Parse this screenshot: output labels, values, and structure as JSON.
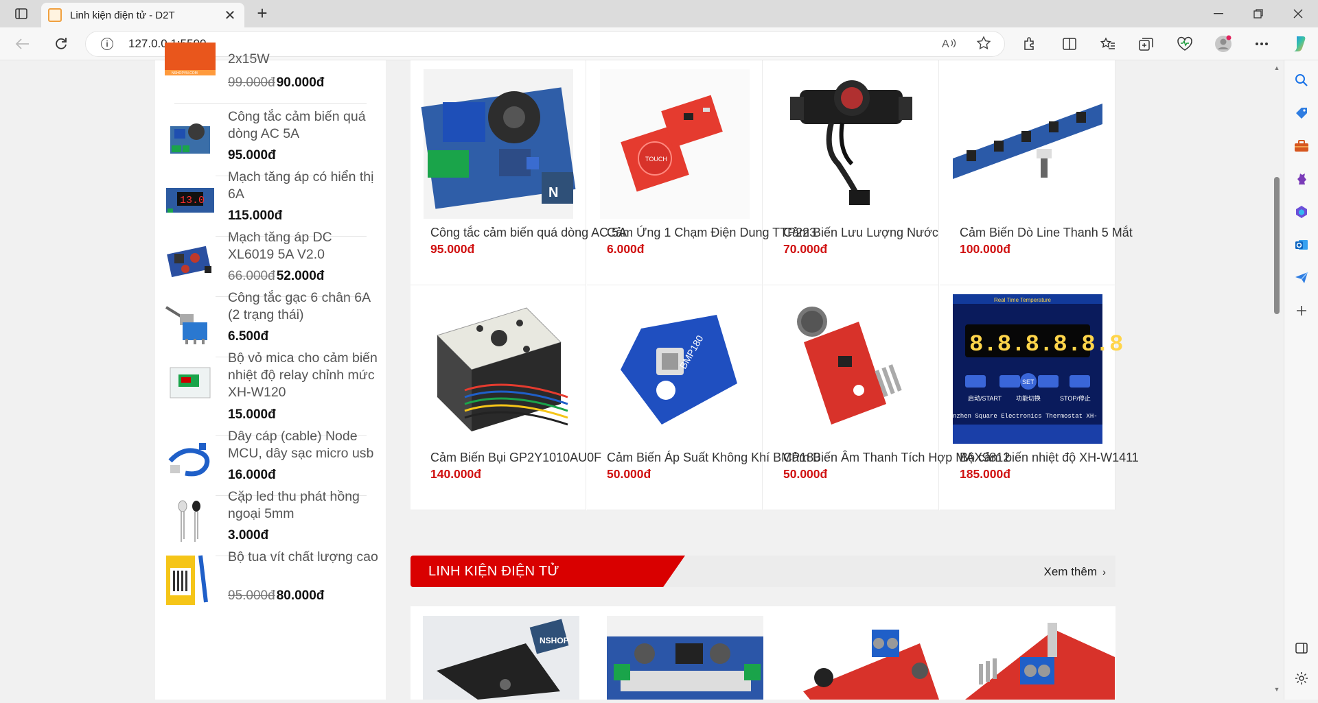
{
  "browser": {
    "tab_title": "Linh kiện điện tử - D2T",
    "url": "127.0.0.1:5500",
    "new_tab": "+",
    "close": "✕"
  },
  "sidebar": {
    "items": [
      {
        "name": "2x15W",
        "old_price": "99.000đ",
        "price": "90.000đ"
      },
      {
        "name": "Công tắc cảm biến quá dòng AC 5A",
        "price": "95.000đ"
      },
      {
        "name": "Mạch tăng áp có hiển thị 6A",
        "price": "115.000đ"
      },
      {
        "name": "Mạch tăng áp DC XL6019 5A V2.0",
        "old_price": "66.000đ",
        "price": "52.000đ"
      },
      {
        "name": "Công tắc gạc 6 chân 6A (2 trạng thái)",
        "price": "6.500đ"
      },
      {
        "name": "Bộ vỏ mica cho cảm biến nhiệt độ relay chỉnh mức XH-W120",
        "price": "15.000đ"
      },
      {
        "name": "Dây cáp (cable) Node MCU, dây sạc micro usb",
        "price": "16.000đ"
      },
      {
        "name": "Cặp led thu phát hồng ngoại 5mm",
        "price": "3.000đ"
      },
      {
        "name": "Bộ tua vít chất lượng cao",
        "old_price": "95.000đ",
        "price": "80.000đ"
      }
    ]
  },
  "products": [
    {
      "name": "Công tắc cảm biến quá dòng AC 5A",
      "price": "95.000đ"
    },
    {
      "name": "Cảm Ứng 1 Chạm Điện Dung TTP223",
      "price": "6.000đ"
    },
    {
      "name": "Cảm Biến Lưu Lượng Nước",
      "price": "70.000đ"
    },
    {
      "name": "Cảm Biến Dò Line Thanh 5 Mắt",
      "price": "100.000đ"
    },
    {
      "name": "Cảm Biến Bụi GP2Y1010AU0F",
      "price": "140.000đ"
    },
    {
      "name": "Cảm Biến Áp Suất Không Khí BMP180",
      "price": "50.000đ"
    },
    {
      "name": "Cảm Biến Âm Thanh Tích Hợp MAX9812",
      "price": "50.000đ"
    },
    {
      "name": "Bộ cảm biến nhiệt độ XH-W1411",
      "price": "185.000đ"
    }
  ],
  "section": {
    "title": "LINH KIỆN ĐIỆN TỬ",
    "more": "Xem thêm",
    "more_chevron": "›"
  },
  "thermostat": {
    "banner": "Real Time Temperature",
    "digits": "8.8.8.8.8.8",
    "btn_start": "启动/START",
    "btn_set": "SET",
    "btn_mode": "功能切换",
    "btn_stop": "STOP/停止",
    "footer": "nzhen Square Electronics Thermostat  XH-"
  },
  "misc": {
    "bmp_label": "BMP180",
    "touch_label": "TOUCH",
    "nshop": "NSHOP",
    "display_value": "13.0"
  },
  "colors": {
    "accent": "#d90000",
    "price": "#d01010"
  }
}
